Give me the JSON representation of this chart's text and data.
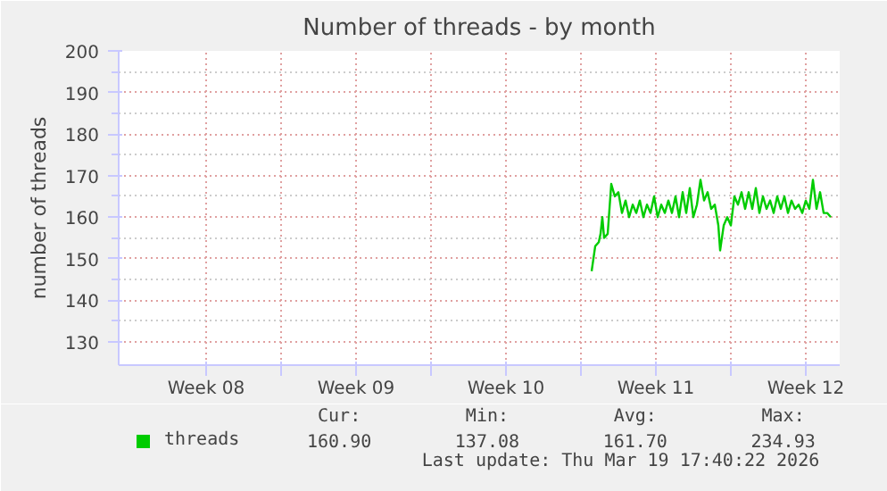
{
  "chart_data": {
    "type": "line",
    "title": "Number of threads - by month",
    "ylabel": "number of threads",
    "xlim": [
      "2026-02-15T10:00",
      "2026-03-21T02:00"
    ],
    "ylim": [
      124.4,
      200
    ],
    "xticks": [
      {
        "value": "2026-02-19T12:00",
        "label": "Week 08"
      },
      {
        "value": "2026-02-23",
        "label": null
      },
      {
        "value": "2026-02-26T12:00",
        "label": "Week 09"
      },
      {
        "value": "2026-03-02",
        "label": null
      },
      {
        "value": "2026-03-05T12:00",
        "label": "Week 10"
      },
      {
        "value": "2026-03-09",
        "label": null
      },
      {
        "value": "2026-03-12T12:00",
        "label": "Week 11"
      },
      {
        "value": "2026-03-16",
        "label": null
      },
      {
        "value": "2026-03-19T12:00",
        "label": "Week 12"
      }
    ],
    "yticks": [
      130,
      140,
      150,
      160,
      170,
      180,
      190,
      200
    ],
    "grid": true,
    "legend": "bottom left",
    "series": [
      {
        "name": "threads",
        "color": "#00cc00",
        "x": [
          "2026-03-09T12:00",
          "2026-03-09T14:00",
          "2026-03-09T16:00",
          "2026-03-09T20:00",
          "2026-03-09T22:00",
          "2026-03-10T00:00",
          "2026-03-10T02:00",
          "2026-03-10T06:00",
          "2026-03-10T08:00",
          "2026-03-10T10:00",
          "2026-03-10T14:00",
          "2026-03-10T18:00",
          "2026-03-10T22:00",
          "2026-03-11T02:00",
          "2026-03-11T06:00",
          "2026-03-11T10:00",
          "2026-03-11T14:00",
          "2026-03-11T18:00",
          "2026-03-11T22:00",
          "2026-03-12T02:00",
          "2026-03-12T06:00",
          "2026-03-12T10:00",
          "2026-03-12T14:00",
          "2026-03-12T18:00",
          "2026-03-12T22:00",
          "2026-03-13T02:00",
          "2026-03-13T06:00",
          "2026-03-13T10:00",
          "2026-03-13T14:00",
          "2026-03-13T18:00",
          "2026-03-13T22:00",
          "2026-03-14T02:00",
          "2026-03-14T06:00",
          "2026-03-14T10:00",
          "2026-03-14T14:00",
          "2026-03-14T18:00",
          "2026-03-14T22:00",
          "2026-03-15T02:00",
          "2026-03-15T06:00",
          "2026-03-15T10:00",
          "2026-03-15T12:00",
          "2026-03-15T16:00",
          "2026-03-15T20:00",
          "2026-03-16T00:00",
          "2026-03-16T04:00",
          "2026-03-16T08:00",
          "2026-03-16T12:00",
          "2026-03-16T16:00",
          "2026-03-16T20:00",
          "2026-03-17T00:00",
          "2026-03-17T04:00",
          "2026-03-17T08:00",
          "2026-03-17T12:00",
          "2026-03-17T16:00",
          "2026-03-17T20:00",
          "2026-03-18T00:00",
          "2026-03-18T04:00",
          "2026-03-18T08:00",
          "2026-03-18T12:00",
          "2026-03-18T16:00",
          "2026-03-18T20:00",
          "2026-03-19T00:00",
          "2026-03-19T04:00",
          "2026-03-19T08:00",
          "2026-03-19T12:00",
          "2026-03-19T16:00",
          "2026-03-19T20:00",
          "2026-03-20T00:00",
          "2026-03-20T04:00",
          "2026-03-20T08:00",
          "2026-03-20T12:00",
          "2026-03-20T16:00"
        ],
        "values": [
          147,
          150,
          153,
          154,
          156,
          160,
          155,
          156,
          162,
          168,
          165,
          166,
          161,
          164,
          160,
          163,
          161,
          164,
          160,
          163,
          161,
          165,
          160,
          163,
          161,
          164,
          161,
          165,
          160,
          166,
          161,
          167,
          160,
          163,
          169,
          164,
          166,
          162,
          163,
          158,
          152,
          158,
          160,
          158,
          165,
          163,
          166,
          162,
          166,
          162,
          167,
          161,
          165,
          162,
          164,
          161,
          165,
          162,
          165,
          161,
          164,
          162,
          163,
          161,
          164,
          162,
          169,
          162,
          166,
          161,
          161,
          160
        ]
      }
    ],
    "annotations": [
      "Cur:",
      "Min:",
      "Avg:",
      "Max:",
      "160.90",
      "137.08",
      "161.70",
      "234.93",
      "Last update: Thu Mar 19 17:40:22 2026"
    ]
  }
}
